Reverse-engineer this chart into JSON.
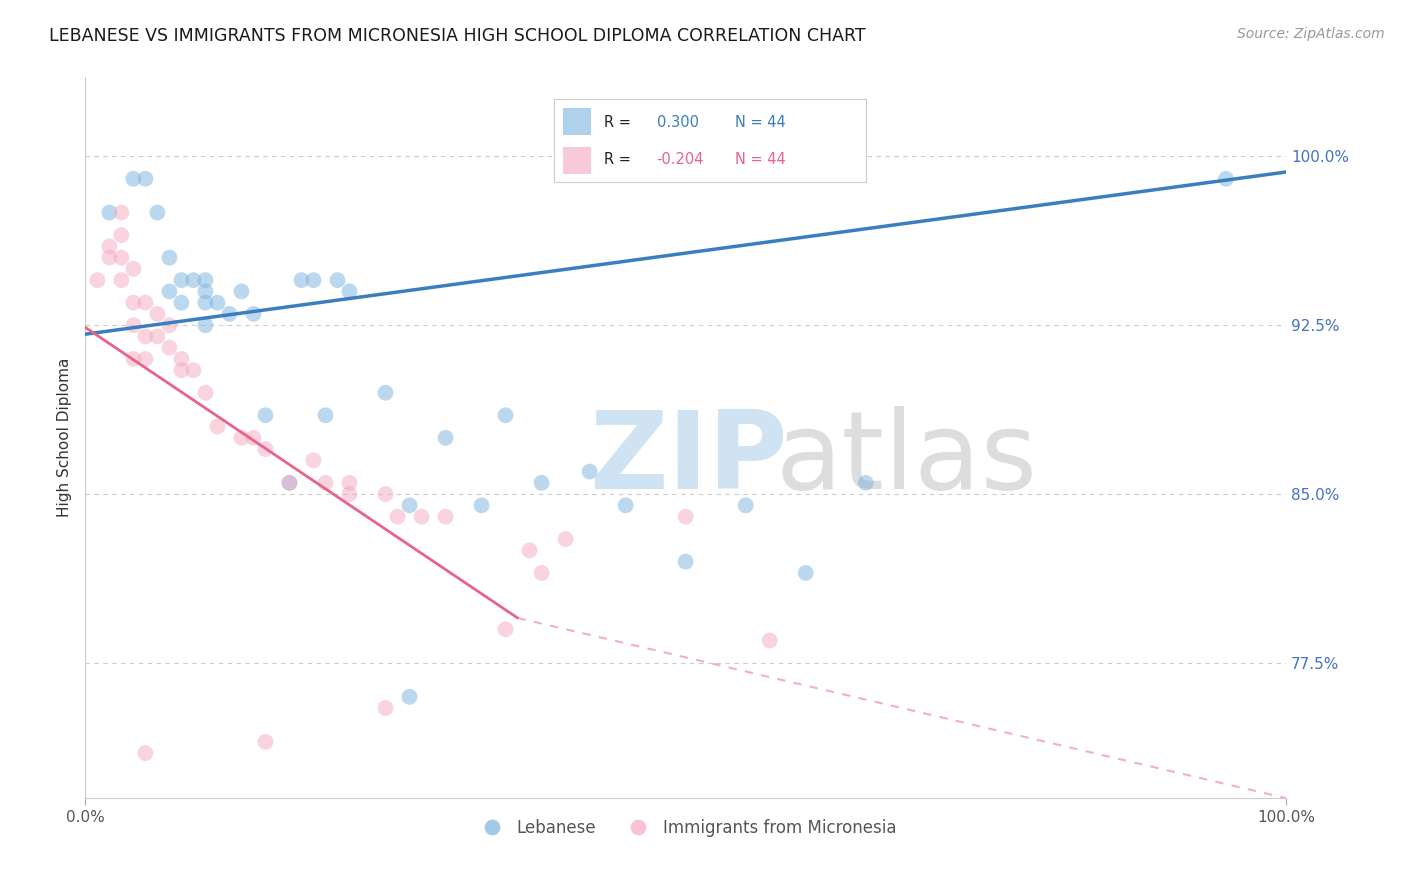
{
  "title": "LEBANESE VS IMMIGRANTS FROM MICRONESIA HIGH SCHOOL DIPLOMA CORRELATION CHART",
  "source": "Source: ZipAtlas.com",
  "ylabel": "High School Diploma",
  "xlim": [
    0.0,
    1.0
  ],
  "ylim": [
    0.715,
    1.035
  ],
  "yticks": [
    0.775,
    0.85,
    0.925,
    1.0
  ],
  "ytick_labels": [
    "77.5%",
    "85.0%",
    "92.5%",
    "100.0%"
  ],
  "xtick_labels": [
    "0.0%",
    "100.0%"
  ],
  "R_blue": 0.3,
  "R_pink": -0.204,
  "N": 44,
  "blue_color": "#7ab3df",
  "pink_color": "#f4a8bf",
  "blue_line_color": "#3a7ebf",
  "pink_line_color": "#e8638a",
  "dashed_line_color": "#f0b0c8",
  "background_color": "#ffffff",
  "blue_line": [
    0.0,
    0.921,
    1.0,
    0.993
  ],
  "pink_solid_line": [
    0.0,
    0.924,
    0.36,
    0.795
  ],
  "pink_dashed_line": [
    0.36,
    0.795,
    1.0,
    0.715
  ],
  "blue_scatter": [
    [
      0.02,
      0.975
    ],
    [
      0.04,
      0.99
    ],
    [
      0.05,
      0.99
    ],
    [
      0.06,
      0.975
    ],
    [
      0.07,
      0.955
    ],
    [
      0.07,
      0.94
    ],
    [
      0.08,
      0.945
    ],
    [
      0.08,
      0.935
    ],
    [
      0.09,
      0.945
    ],
    [
      0.1,
      0.945
    ],
    [
      0.1,
      0.94
    ],
    [
      0.1,
      0.935
    ],
    [
      0.1,
      0.925
    ],
    [
      0.11,
      0.935
    ],
    [
      0.12,
      0.93
    ],
    [
      0.13,
      0.94
    ],
    [
      0.14,
      0.93
    ],
    [
      0.15,
      0.885
    ],
    [
      0.17,
      0.855
    ],
    [
      0.18,
      0.945
    ],
    [
      0.19,
      0.945
    ],
    [
      0.2,
      0.885
    ],
    [
      0.21,
      0.945
    ],
    [
      0.22,
      0.94
    ],
    [
      0.25,
      0.895
    ],
    [
      0.27,
      0.845
    ],
    [
      0.3,
      0.875
    ],
    [
      0.33,
      0.845
    ],
    [
      0.35,
      0.885
    ],
    [
      0.38,
      0.855
    ],
    [
      0.42,
      0.86
    ],
    [
      0.45,
      0.845
    ],
    [
      0.5,
      0.82
    ],
    [
      0.55,
      0.845
    ],
    [
      0.6,
      0.815
    ],
    [
      0.65,
      0.855
    ],
    [
      0.27,
      0.76
    ],
    [
      0.95,
      0.99
    ]
  ],
  "pink_scatter": [
    [
      0.01,
      0.945
    ],
    [
      0.02,
      0.96
    ],
    [
      0.02,
      0.955
    ],
    [
      0.03,
      0.975
    ],
    [
      0.03,
      0.965
    ],
    [
      0.03,
      0.955
    ],
    [
      0.03,
      0.945
    ],
    [
      0.04,
      0.95
    ],
    [
      0.04,
      0.935
    ],
    [
      0.04,
      0.925
    ],
    [
      0.04,
      0.91
    ],
    [
      0.05,
      0.935
    ],
    [
      0.05,
      0.92
    ],
    [
      0.05,
      0.91
    ],
    [
      0.05,
      0.735
    ],
    [
      0.06,
      0.93
    ],
    [
      0.06,
      0.92
    ],
    [
      0.07,
      0.925
    ],
    [
      0.07,
      0.915
    ],
    [
      0.08,
      0.91
    ],
    [
      0.08,
      0.905
    ],
    [
      0.09,
      0.905
    ],
    [
      0.1,
      0.895
    ],
    [
      0.11,
      0.88
    ],
    [
      0.13,
      0.875
    ],
    [
      0.14,
      0.875
    ],
    [
      0.15,
      0.87
    ],
    [
      0.17,
      0.855
    ],
    [
      0.19,
      0.865
    ],
    [
      0.2,
      0.855
    ],
    [
      0.22,
      0.855
    ],
    [
      0.22,
      0.85
    ],
    [
      0.25,
      0.85
    ],
    [
      0.26,
      0.84
    ],
    [
      0.28,
      0.84
    ],
    [
      0.3,
      0.84
    ],
    [
      0.35,
      0.79
    ],
    [
      0.37,
      0.825
    ],
    [
      0.4,
      0.83
    ],
    [
      0.5,
      0.84
    ],
    [
      0.57,
      0.785
    ],
    [
      0.15,
      0.74
    ],
    [
      0.25,
      0.755
    ],
    [
      0.38,
      0.815
    ]
  ]
}
